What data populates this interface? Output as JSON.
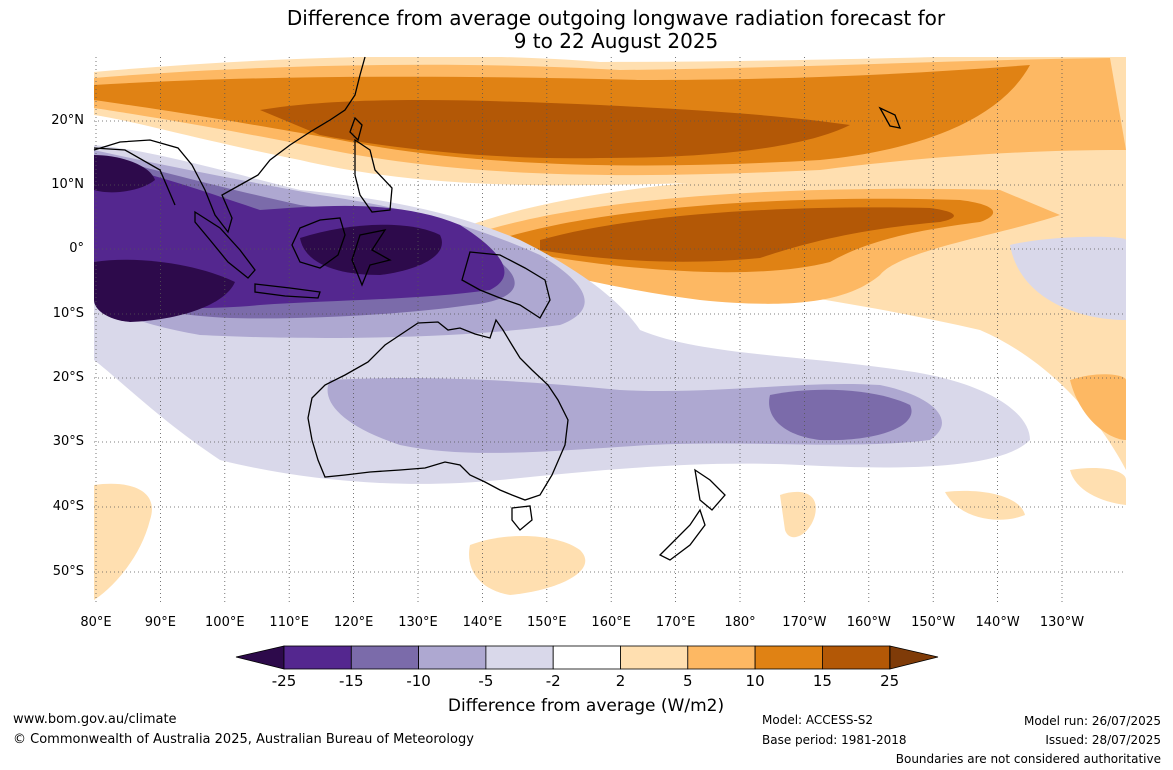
{
  "title": {
    "line1": "Difference from average outgoing longwave radiation forecast for",
    "line2": "9 to 22 August 2025"
  },
  "map": {
    "lat_labels": [
      "20°N",
      "10°N",
      "0°",
      "10°S",
      "20°S",
      "30°S",
      "40°S",
      "50°S"
    ],
    "lon_labels": [
      "80°E",
      "90°E",
      "100°E",
      "110°E",
      "120°E",
      "130°E",
      "140°E",
      "150°E",
      "160°E",
      "170°E",
      "180°",
      "170°W",
      "160°W",
      "150°W",
      "140°W",
      "130°W"
    ],
    "gridlines": true
  },
  "colorbar": {
    "labels": [
      "-25",
      "-15",
      "-10",
      "-5",
      "-2",
      "2",
      "5",
      "10",
      "15",
      "25"
    ],
    "colors": [
      "#2d0a4b",
      "#54278f",
      "#7b6baa",
      "#aea8d1",
      "#d9d8ea",
      "#ffffff",
      "#ffdfb0",
      "#fdb863",
      "#e08214",
      "#b35806",
      "#7f3b08"
    ],
    "title": "Difference from average (W/m2)"
  },
  "footer": {
    "website": "www.bom.gov.au/climate",
    "copyright": "© Commonwealth of Australia 2025, Australian Bureau of Meteorology",
    "model": "Model: ACCESS-S2",
    "base_period": "Base period: 1981-2018",
    "model_run": "Model run: 26/07/2025",
    "issued": "Issued: 28/07/2025",
    "disclaimer": "Boundaries are not considered authoritative"
  }
}
